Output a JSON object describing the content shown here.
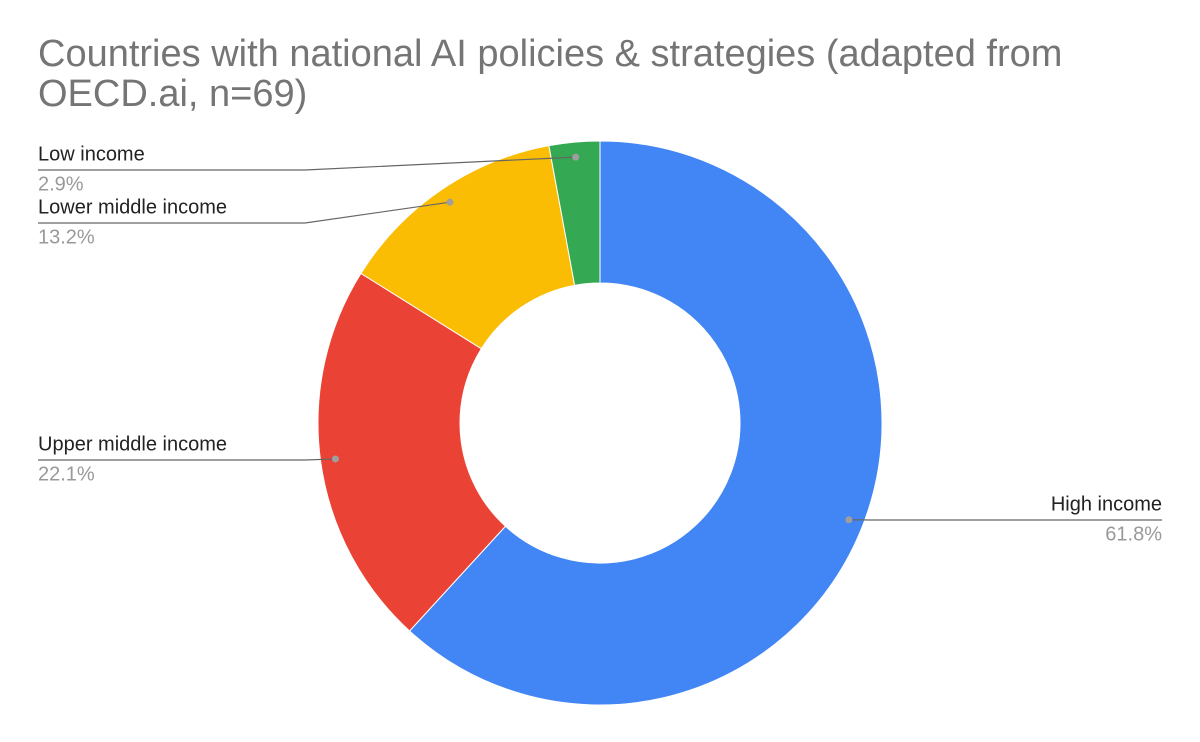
{
  "chart_data": {
    "type": "donut",
    "title": "Countries with national AI policies & strategies (adapted from OECD.ai, n=69)",
    "categories": [
      "High income",
      "Upper middle income",
      "Lower middle income",
      "Low income"
    ],
    "values": [
      61.8,
      22.1,
      13.2,
      2.9
    ],
    "value_labels": [
      "61.8%",
      "22.1%",
      "13.2%",
      "2.9%"
    ],
    "colors": [
      "#4285f4",
      "#ea4335",
      "#fbbc04",
      "#34a853"
    ]
  }
}
